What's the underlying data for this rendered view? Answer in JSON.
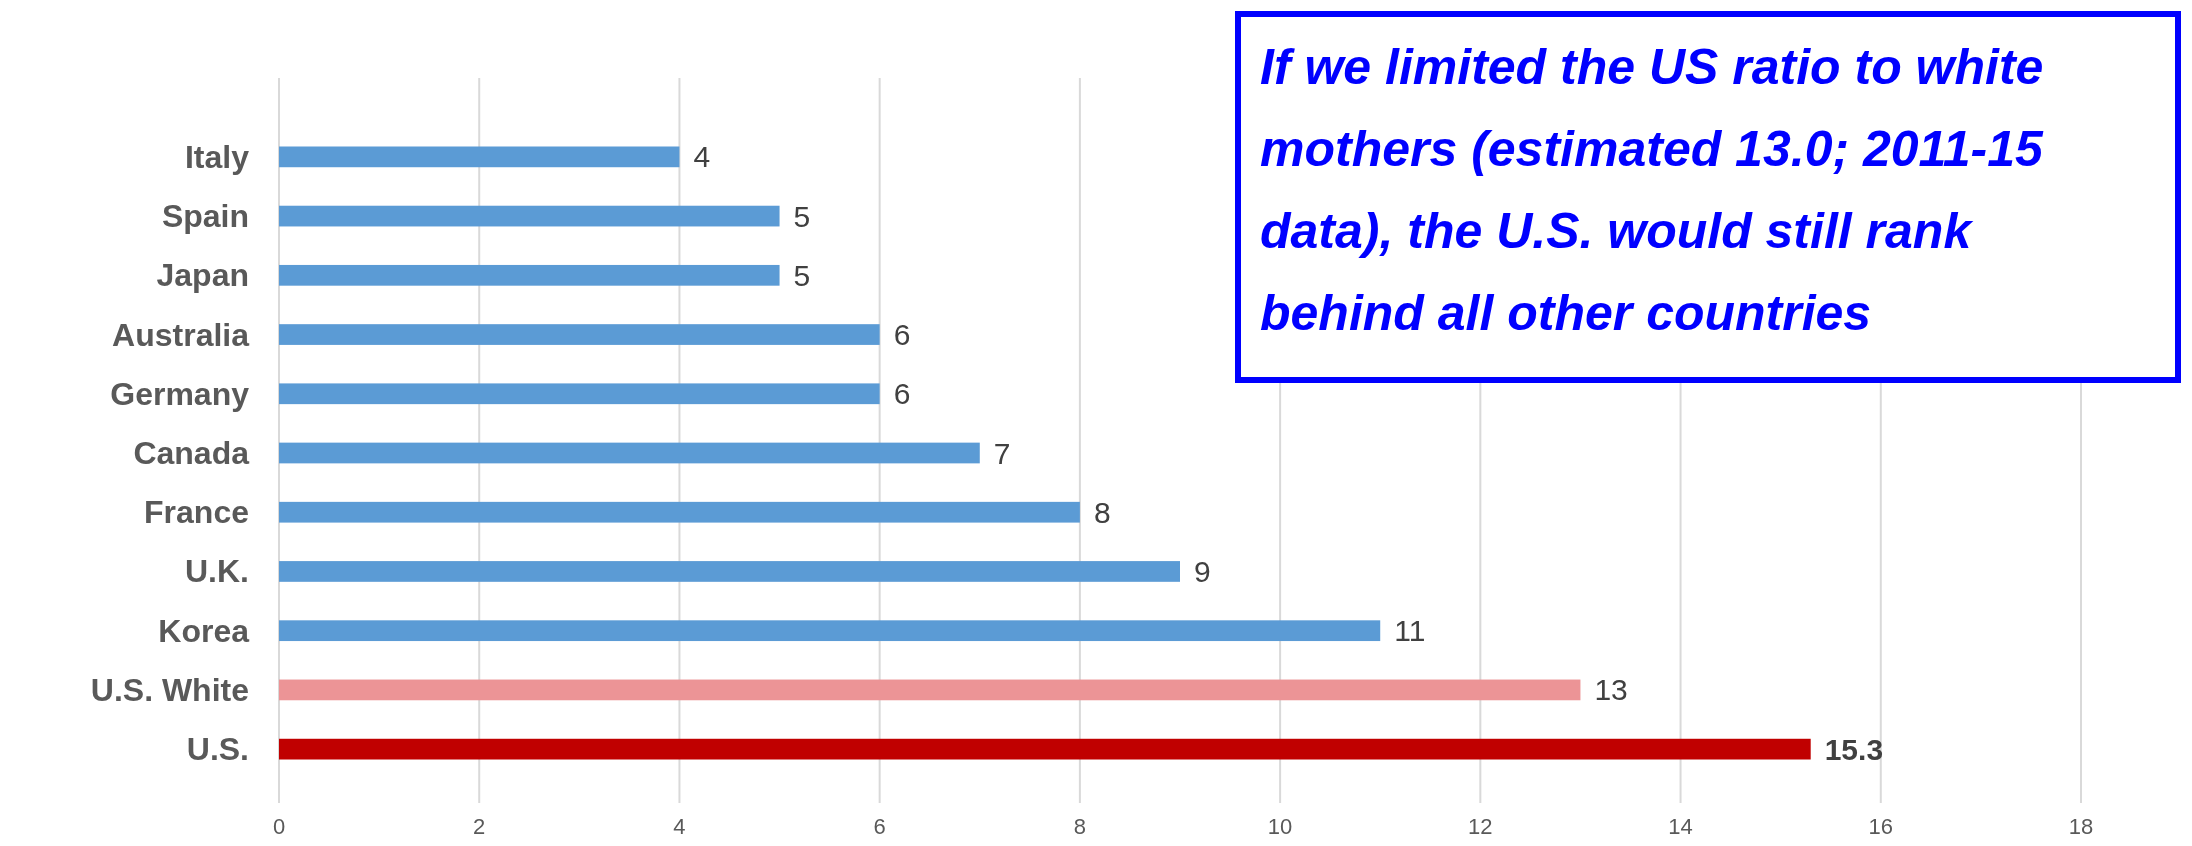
{
  "chart_data": {
    "type": "bar",
    "orientation": "horizontal",
    "categories": [
      "Italy",
      "Spain",
      "Japan",
      "Australia",
      "Germany",
      "Canada",
      "France",
      "U.K.",
      "Korea",
      "U.S. White",
      "U.S."
    ],
    "values": [
      4,
      5,
      5,
      6,
      6,
      7,
      8,
      9,
      11,
      13,
      15.3
    ],
    "colors": [
      "#5b9bd5",
      "#5b9bd5",
      "#5b9bd5",
      "#5b9bd5",
      "#5b9bd5",
      "#5b9bd5",
      "#5b9bd5",
      "#5b9bd5",
      "#5b9bd5",
      "#ec9496",
      "#c00000"
    ],
    "xlim": [
      0,
      18
    ],
    "xticks": [
      0,
      2,
      4,
      6,
      8,
      10,
      12,
      14,
      16,
      18
    ],
    "grid": "x",
    "data_labels": true,
    "annotations": [
      "If we limited the US ratio to white mothers (estimated 13.0; 2011-15 data), the U.S. would still rank behind all other countries"
    ]
  }
}
